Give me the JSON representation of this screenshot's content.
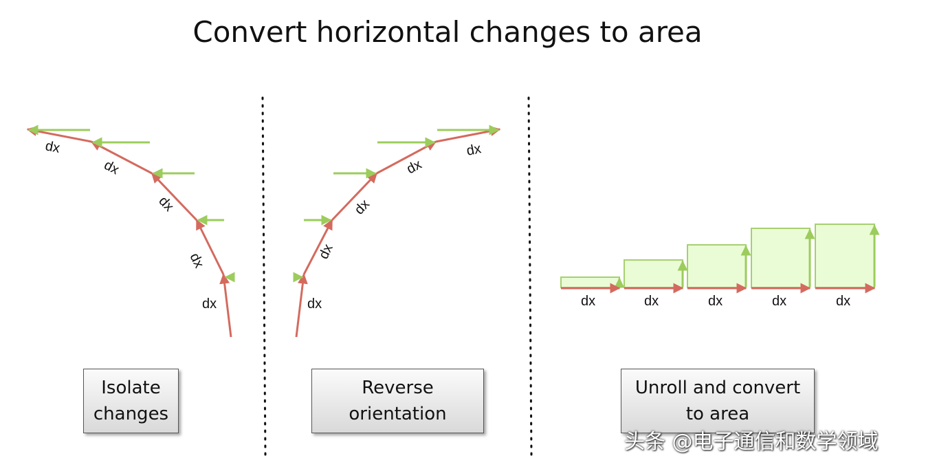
{
  "title": "Convert horizontal changes to area",
  "colors": {
    "path": "#d46a5e",
    "change": "#9ccc5c",
    "area_fill": "#eafcd6",
    "area_stroke": "#a6d070"
  },
  "dx_label": "dx",
  "panels": [
    {
      "name": "isolate",
      "caption": "Isolate\nchanges"
    },
    {
      "name": "reverse",
      "caption": "Reverse\norientation"
    },
    {
      "name": "unroll",
      "caption": "Unroll and convert\nto area"
    }
  ],
  "watermark": "头条 @电子通信和数学领域"
}
